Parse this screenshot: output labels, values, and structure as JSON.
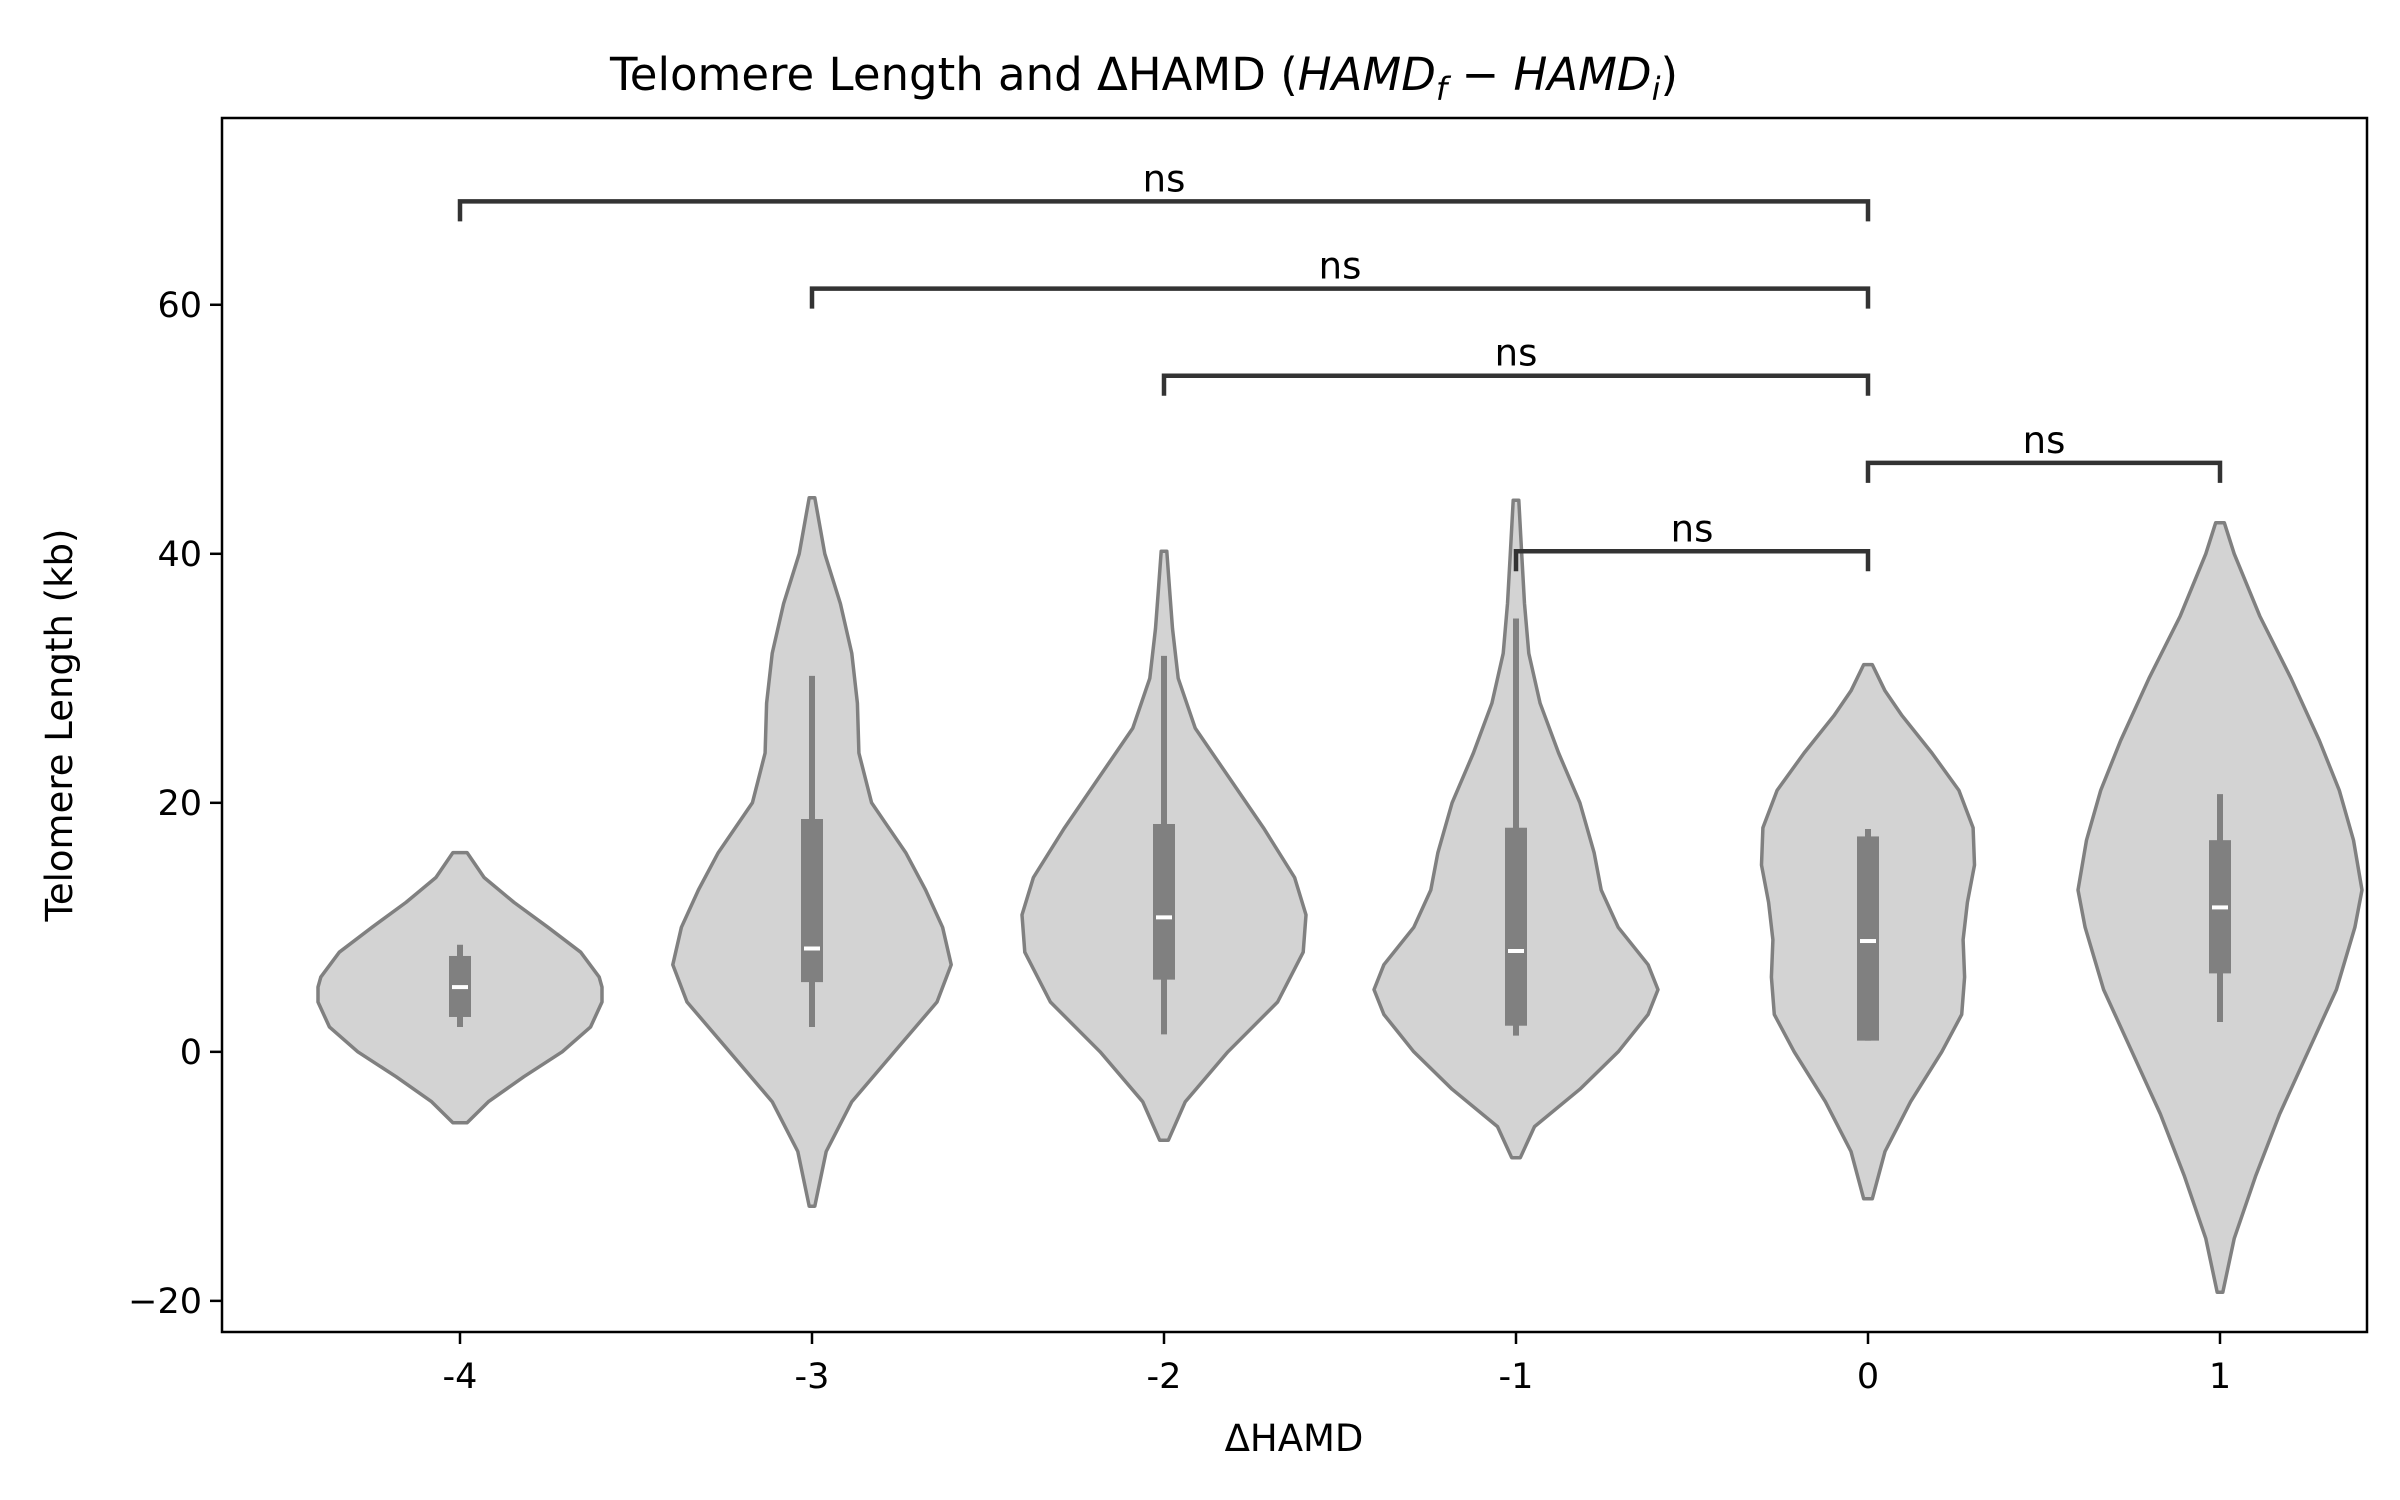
{
  "chart_data": {
    "type": "violin",
    "title": "Telomere Length and ΔHAMD (",
    "title_math": {
      "a": "HAMD",
      "a_sub": "f",
      "op": " − ",
      "b": "HAMD",
      "b_sub": "i",
      "close": ")"
    },
    "xlabel": "ΔHAMD",
    "ylabel": "Telomere Length (kb)",
    "ylim": [
      -22.5,
      75
    ],
    "yticks": [
      -20,
      0,
      20,
      40,
      60
    ],
    "ytick_labels": [
      "−20",
      "0",
      "20",
      "40",
      "60"
    ],
    "categories": [
      "-4",
      "-3",
      "-2",
      "-1",
      "0",
      "1"
    ],
    "grid": false,
    "colors": {
      "violin_fill": "#d3d3d3",
      "violin_edge": "#808080",
      "box": "#808080",
      "median": "#ffffff",
      "bracket": "#333333"
    },
    "groups": [
      {
        "category": "-4",
        "kde_min": -5.7,
        "kde_max": 16.0,
        "q1": 2.8,
        "median": 5.2,
        "q3": 7.7,
        "whisker_low": 2.0,
        "whisker_high": 8.6,
        "density": [
          [
            -5.7,
            0.05
          ],
          [
            -4,
            0.2
          ],
          [
            -2,
            0.45
          ],
          [
            0,
            0.72
          ],
          [
            2,
            0.92
          ],
          [
            4,
            1.0
          ],
          [
            5.2,
            1.0
          ],
          [
            6,
            0.98
          ],
          [
            8,
            0.85
          ],
          [
            10,
            0.62
          ],
          [
            12,
            0.38
          ],
          [
            14,
            0.17
          ],
          [
            16,
            0.05
          ]
        ]
      },
      {
        "category": "-3",
        "kde_min": -12.4,
        "kde_max": 44.5,
        "q1": 5.6,
        "median": 8.3,
        "q3": 18.7,
        "whisker_low": 2.0,
        "whisker_high": 30.2,
        "density": [
          [
            -12.4,
            0.02
          ],
          [
            -8,
            0.1
          ],
          [
            -4,
            0.28
          ],
          [
            0,
            0.58
          ],
          [
            4,
            0.88
          ],
          [
            7,
            0.98
          ],
          [
            10,
            0.92
          ],
          [
            13,
            0.8
          ],
          [
            16,
            0.66
          ],
          [
            20,
            0.42
          ],
          [
            24,
            0.33
          ],
          [
            28,
            0.32
          ],
          [
            32,
            0.28
          ],
          [
            36,
            0.2
          ],
          [
            40,
            0.09
          ],
          [
            44.5,
            0.02
          ]
        ]
      },
      {
        "category": "-2",
        "kde_min": -7.1,
        "kde_max": 40.2,
        "q1": 5.8,
        "median": 10.8,
        "q3": 18.3,
        "whisker_low": 1.4,
        "whisker_high": 31.8,
        "density": [
          [
            -7.1,
            0.03
          ],
          [
            -4,
            0.15
          ],
          [
            0,
            0.45
          ],
          [
            4,
            0.8
          ],
          [
            8,
            0.98
          ],
          [
            11,
            1.0
          ],
          [
            14,
            0.92
          ],
          [
            18,
            0.7
          ],
          [
            22,
            0.46
          ],
          [
            26,
            0.22
          ],
          [
            30,
            0.1
          ],
          [
            34,
            0.06
          ],
          [
            37,
            0.04
          ],
          [
            40.2,
            0.02
          ]
        ]
      },
      {
        "category": "-1",
        "kde_min": -8.5,
        "kde_max": 44.3,
        "q1": 2.1,
        "median": 8.1,
        "q3": 18.0,
        "whisker_low": 1.3,
        "whisker_high": 34.8,
        "density": [
          [
            -8.5,
            0.03
          ],
          [
            -6,
            0.13
          ],
          [
            -3,
            0.45
          ],
          [
            0,
            0.72
          ],
          [
            3,
            0.93
          ],
          [
            5,
            1.0
          ],
          [
            7,
            0.93
          ],
          [
            10,
            0.72
          ],
          [
            13,
            0.6
          ],
          [
            16,
            0.55
          ],
          [
            20,
            0.45
          ],
          [
            24,
            0.3
          ],
          [
            28,
            0.17
          ],
          [
            32,
            0.09
          ],
          [
            36,
            0.06
          ],
          [
            40,
            0.04
          ],
          [
            44.3,
            0.02
          ]
        ]
      },
      {
        "category": "0",
        "kde_min": -11.8,
        "kde_max": 31.1,
        "q1": 0.9,
        "median": 8.9,
        "q3": 17.3,
        "whisker_low": 0.9,
        "whisker_high": 17.9,
        "density": [
          [
            -11.8,
            0.03
          ],
          [
            -8,
            0.12
          ],
          [
            -4,
            0.3
          ],
          [
            0,
            0.52
          ],
          [
            3,
            0.66
          ],
          [
            6,
            0.68
          ],
          [
            9,
            0.67
          ],
          [
            12,
            0.7
          ],
          [
            15,
            0.75
          ],
          [
            18,
            0.74
          ],
          [
            21,
            0.64
          ],
          [
            24,
            0.45
          ],
          [
            27,
            0.24
          ],
          [
            29,
            0.12
          ],
          [
            31.1,
            0.03
          ]
        ]
      },
      {
        "category": "1",
        "kde_min": -19.3,
        "kde_max": 42.5,
        "q1": 6.3,
        "median": 11.6,
        "q3": 17.0,
        "whisker_low": 2.4,
        "whisker_high": 20.7,
        "density": [
          [
            -19.3,
            0.02
          ],
          [
            -15,
            0.1
          ],
          [
            -10,
            0.25
          ],
          [
            -5,
            0.42
          ],
          [
            0,
            0.62
          ],
          [
            5,
            0.82
          ],
          [
            10,
            0.95
          ],
          [
            13,
            1.0
          ],
          [
            17,
            0.94
          ],
          [
            21,
            0.84
          ],
          [
            25,
            0.7
          ],
          [
            30,
            0.5
          ],
          [
            35,
            0.28
          ],
          [
            40,
            0.1
          ],
          [
            42.5,
            0.03
          ]
        ]
      }
    ],
    "annotations": [
      {
        "from": "-1",
        "to": "0",
        "y": 40.2,
        "label": "ns"
      },
      {
        "from": "0",
        "to": "1",
        "y": 47.3,
        "label": "ns"
      },
      {
        "from": "-2",
        "to": "0",
        "y": 54.3,
        "label": "ns"
      },
      {
        "from": "-3",
        "to": "0",
        "y": 61.3,
        "label": "ns"
      },
      {
        "from": "-4",
        "to": "0",
        "y": 68.3,
        "label": "ns"
      }
    ]
  }
}
